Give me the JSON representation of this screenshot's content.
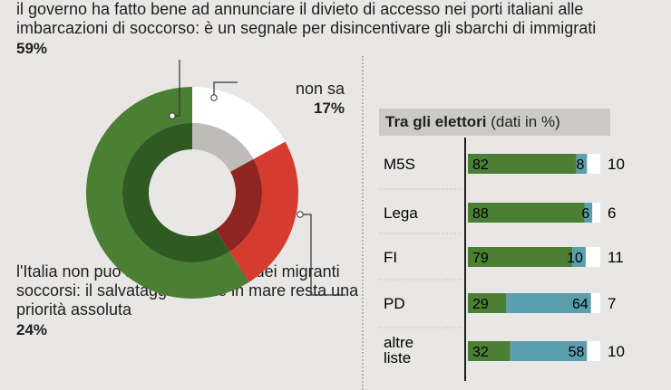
{
  "question_top": {
    "text": "il governo ha fatto bene ad annunciare il divieto di accesso nei porti italiani alle imbarcazioni di soccorso: è un segnale per disincentivare gli sbarchi di immigrati",
    "percent": "59%"
  },
  "question_nonsa": {
    "text": "non sa",
    "percent": "17%"
  },
  "question_bottom": {
    "text": "l'Italia non può rifiutare lo sbarco dei migranti soccorsi: il salvataggio di vite in mare resta una priorità assoluta",
    "percent": "24%"
  },
  "colors": {
    "green": "#4a7f34",
    "green_dark": "#2f5a22",
    "red": "#d63b2f",
    "red_dark": "#8f2520",
    "white": "#ffffff",
    "grey": "#bdbcb9",
    "blue": "#5b9fae",
    "background": "#e8e7e5"
  },
  "legend": {
    "title_bold": "Tra gli elettori",
    "title_rest": "(dati in %)"
  },
  "chart_data": [
    {
      "type": "pie",
      "variant": "donut",
      "slices": [
        {
          "label": "governo ha fatto bene",
          "value": 59,
          "color": "#4a7f34"
        },
        {
          "label": "non sa",
          "value": 17,
          "color": "#ffffff"
        },
        {
          "label": "l'Italia non può rifiutare lo sbarco",
          "value": 24,
          "color": "#d63b2f"
        }
      ]
    },
    {
      "type": "bar",
      "orientation": "horizontal",
      "stacked": true,
      "title": "Tra gli elettori (dati in %)",
      "categories": [
        "M5S",
        "Lega",
        "FI",
        "PD",
        "altre liste"
      ],
      "series": [
        {
          "values": [
            82,
            88,
            79,
            29,
            32
          ],
          "color": "#4a7f34"
        },
        {
          "values": [
            8,
            6,
            10,
            64,
            58
          ],
          "color": "#5b9fae"
        },
        {
          "values": [
            10,
            6,
            11,
            7,
            10
          ],
          "color": "#ffffff"
        }
      ],
      "xlim": [
        0,
        100
      ]
    }
  ]
}
